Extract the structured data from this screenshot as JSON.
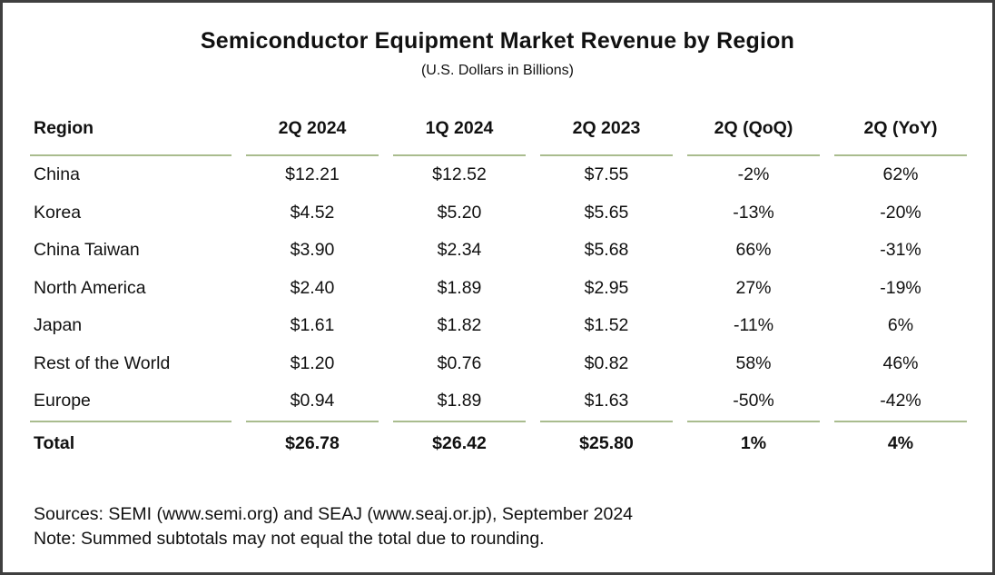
{
  "title": "Semiconductor Equipment Market Revenue by Region",
  "subtitle": "(U.S. Dollars in Billions)",
  "colors": {
    "frame_border": "#3f3f3f",
    "rule_line": "#a9bc8e",
    "text": "#111111",
    "background": "#ffffff"
  },
  "table": {
    "columns": [
      "Region",
      "2Q 2024",
      "1Q 2024",
      "2Q 2023",
      "2Q (QoQ)",
      "2Q (YoY)"
    ],
    "rows": [
      {
        "cells": [
          "China",
          "$12.21",
          "$12.52",
          "$7.55",
          "-2%",
          "62%"
        ]
      },
      {
        "cells": [
          "Korea",
          "$4.52",
          "$5.20",
          "$5.65",
          "-13%",
          "-20%"
        ]
      },
      {
        "cells": [
          "China Taiwan",
          "$3.90",
          "$2.34",
          "$5.68",
          "66%",
          "-31%"
        ]
      },
      {
        "cells": [
          "North America",
          "$2.40",
          "$1.89",
          "$2.95",
          "27%",
          "-19%"
        ]
      },
      {
        "cells": [
          "Japan",
          "$1.61",
          "$1.82",
          "$1.52",
          "-11%",
          "6%"
        ]
      },
      {
        "cells": [
          "Rest of the World",
          "$1.20",
          "$0.76",
          "$0.82",
          "58%",
          "46%"
        ]
      },
      {
        "cells": [
          "Europe",
          "$0.94",
          "$1.89",
          "$1.63",
          "-50%",
          "-42%"
        ]
      },
      {
        "cells": [
          "Total",
          "$26.78",
          "$26.42",
          "$25.80",
          "1%",
          "4%"
        ]
      }
    ]
  },
  "footer": {
    "sources": "Sources: SEMI (www.semi.org) and SEAJ (www.seaj.or.jp), September 2024",
    "note": "Note: Summed subtotals may not equal the total due to rounding."
  },
  "chart_data": {
    "type": "table",
    "title": "Semiconductor Equipment Market Revenue by Region",
    "subtitle": "(U.S. Dollars in Billions)",
    "units": "USD billions",
    "columns": [
      "Region",
      "2Q 2024",
      "1Q 2024",
      "2Q 2023",
      "2Q (QoQ)",
      "2Q (YoY)"
    ],
    "series": [
      {
        "region": "China",
        "q2_2024": 12.21,
        "q1_2024": 12.52,
        "q2_2023": 7.55,
        "qoq_pct": -2,
        "yoy_pct": 62
      },
      {
        "region": "Korea",
        "q2_2024": 4.52,
        "q1_2024": 5.2,
        "q2_2023": 5.65,
        "qoq_pct": -13,
        "yoy_pct": -20
      },
      {
        "region": "China Taiwan",
        "q2_2024": 3.9,
        "q1_2024": 2.34,
        "q2_2023": 5.68,
        "qoq_pct": 66,
        "yoy_pct": -31
      },
      {
        "region": "North America",
        "q2_2024": 2.4,
        "q1_2024": 1.89,
        "q2_2023": 2.95,
        "qoq_pct": 27,
        "yoy_pct": -19
      },
      {
        "region": "Japan",
        "q2_2024": 1.61,
        "q1_2024": 1.82,
        "q2_2023": 1.52,
        "qoq_pct": -11,
        "yoy_pct": 6
      },
      {
        "region": "Rest of the World",
        "q2_2024": 1.2,
        "q1_2024": 0.76,
        "q2_2023": 0.82,
        "qoq_pct": 58,
        "yoy_pct": 46
      },
      {
        "region": "Europe",
        "q2_2024": 0.94,
        "q1_2024": 1.89,
        "q2_2023": 1.63,
        "qoq_pct": -50,
        "yoy_pct": -42
      }
    ],
    "total": {
      "region": "Total",
      "q2_2024": 26.78,
      "q1_2024": 26.42,
      "q2_2023": 25.8,
      "qoq_pct": 1,
      "yoy_pct": 4
    },
    "sources_note": "Sources: SEMI (www.semi.org) and SEAJ (www.seaj.or.jp), September 2024",
    "rounding_note": "Note: Summed subtotals may not equal the total due to rounding."
  }
}
